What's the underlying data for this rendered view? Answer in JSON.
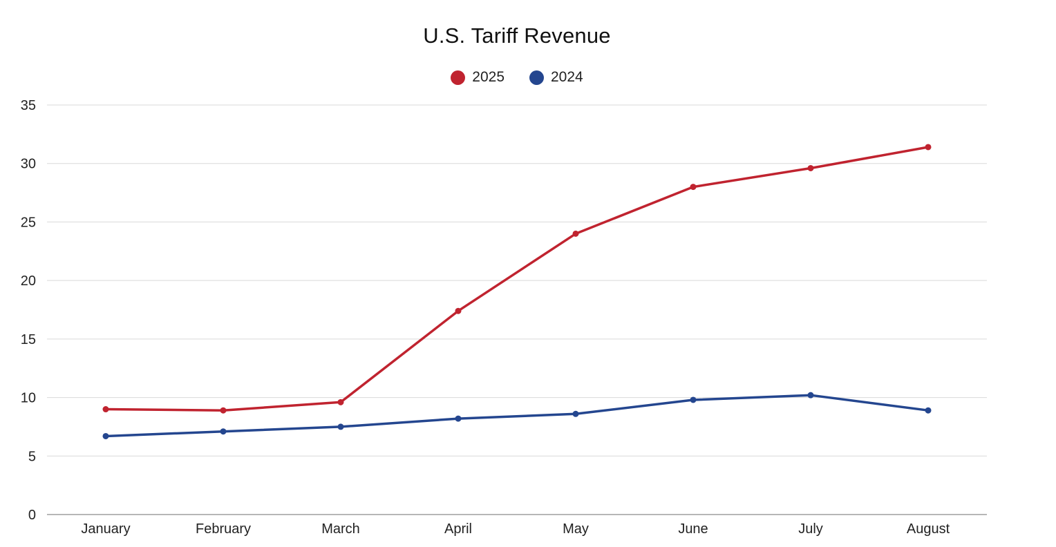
{
  "chart_data": {
    "type": "line",
    "title": "U.S. Tariff Revenue",
    "xlabel": "",
    "ylabel": "",
    "categories": [
      "January",
      "February",
      "March",
      "April",
      "May",
      "June",
      "July",
      "August"
    ],
    "series": [
      {
        "name": "2025",
        "color": "#c0232f",
        "values": [
          9.0,
          8.9,
          9.6,
          17.4,
          24.0,
          28.0,
          29.6,
          31.4
        ]
      },
      {
        "name": "2024",
        "color": "#24468f",
        "values": [
          6.7,
          7.1,
          7.5,
          8.2,
          8.6,
          9.8,
          10.2,
          8.9
        ]
      }
    ],
    "ylim": [
      0,
      35
    ],
    "yticks": [
      0,
      5,
      10,
      15,
      20,
      25,
      30,
      35
    ],
    "grid": true,
    "legend": "top-center"
  }
}
